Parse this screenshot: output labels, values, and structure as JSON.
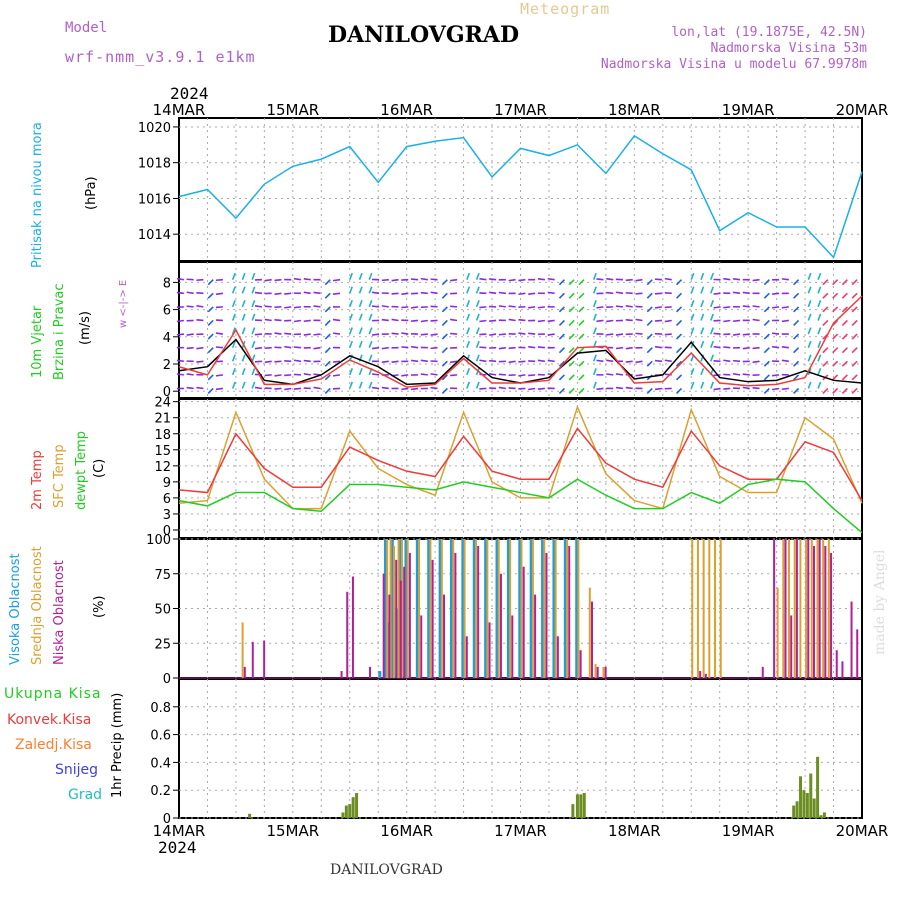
{
  "header": {
    "model_label": "Model",
    "model_name": "wrf-nmm_v3.9.1 e1km",
    "title": "DANILOVGRAD",
    "meteogram": "Meteogram",
    "lonlat": "lon,lat (19.1875E, 42.5N)",
    "elev": "Nadmorska Visina 53m",
    "elev_model": "Nadmorska Visina u modelu 67.9978m",
    "year_top": "2024",
    "year_bottom": "2024",
    "bottom_title": "DANILOVGRAD",
    "watermark": "made by Angel"
  },
  "date_labels": [
    "14MAR",
    "15MAR",
    "16MAR",
    "17MAR",
    "18MAR",
    "19MAR",
    "20MAR"
  ],
  "colors": {
    "pressure": "#1ab0e8",
    "temp2m": "#ee3b3b",
    "sfc": "#dca030",
    "dewpt": "#22cc22",
    "high_cloud": "#1a9ee0",
    "mid_cloud": "#dca030",
    "low_cloud": "#b0209a",
    "precip": "#6b8e23",
    "wind_purple": "#8a2be2",
    "wind_cyan": "#20b2c8",
    "wind_blue": "#2060e0"
  },
  "panel_labels": {
    "pressure": "Pritisak na nivou mora",
    "pressure_unit": "(hPa)",
    "wind1": "10m Vjetar",
    "wind2": "Brzina i Pravac",
    "wind_unit": "(m/s)",
    "compass": "w <-|-> E",
    "temp_2m": "2m Temp",
    "temp_sfc": "SFC Temp",
    "temp_dew": "dewpt Temp",
    "temp_unit": "(C)",
    "cloud_high": "Visoka Oblacnost",
    "cloud_mid": "Srednja Oblacnost",
    "cloud_low": "Niska Oblacnost",
    "cloud_unit": "(%)",
    "precip_unit": "1hr Precip (mm)",
    "legend": [
      "Ukupna Kisa",
      "Konvek.Kisa",
      "Zaledj.Kisa",
      "Snijeg",
      "Grad"
    ]
  },
  "chart_data": [
    {
      "type": "line",
      "ylabel": "(hPa)",
      "ylim": [
        1012.5,
        1020.5
      ],
      "yticks": [
        "1014",
        "1016",
        "1018",
        "1020"
      ],
      "x_days": [
        0,
        0.25,
        0.5,
        0.75,
        1,
        1.25,
        1.5,
        1.75,
        2,
        2.25,
        2.5,
        2.75,
        3,
        3.25,
        3.5,
        3.75,
        4,
        4.25,
        4.5,
        4.75,
        5,
        5.25,
        5.5,
        5.75,
        6
      ],
      "series": [
        {
          "values": [
            1016.1,
            1016.5,
            1014.9,
            1016.8,
            1017.8,
            1018.2,
            1018.9,
            1016.9,
            1018.9,
            1019.2,
            1019.4,
            1017.2,
            1018.8,
            1018.4,
            1019.0,
            1017.4,
            1019.5,
            1018.5,
            1017.6,
            1014.2,
            1015.2,
            1014.4,
            1014.4,
            1012.7,
            1017.5
          ]
        }
      ]
    },
    {
      "type": "line",
      "ylabel": "(m/s)",
      "ylim": [
        -0.5,
        9.5
      ],
      "yticks": [
        "0",
        "2",
        "4",
        "6",
        "8"
      ],
      "x_days": [
        0,
        0.25,
        0.5,
        0.75,
        1,
        1.25,
        1.5,
        1.75,
        2,
        2.25,
        2.5,
        2.75,
        3,
        3.25,
        3.5,
        3.75,
        4,
        4.25,
        4.5,
        4.75,
        5,
        5.25,
        5.5,
        5.75,
        6
      ],
      "series": [
        {
          "values": [
            1.5,
            1.8,
            3.8,
            0.8,
            0.5,
            1.2,
            2.6,
            1.8,
            0.5,
            0.6,
            2.6,
            1.0,
            0.6,
            1.0,
            2.8,
            3.0,
            0.9,
            1.2,
            3.6,
            1.0,
            0.7,
            0.8,
            1.5,
            0.8,
            0.6
          ]
        },
        {
          "values": [
            1.8,
            1.2,
            4.5,
            0.5,
            0.5,
            0.9,
            2.3,
            1.4,
            0.3,
            0.5,
            2.4,
            0.6,
            0.6,
            0.8,
            3.2,
            3.3,
            0.6,
            0.7,
            2.8,
            0.6,
            0.4,
            0.5,
            1.0,
            5.0,
            7.0
          ]
        }
      ]
    },
    {
      "type": "line",
      "ylabel": "(C)",
      "ylim": [
        -1.5,
        24.5
      ],
      "yticks": [
        "0",
        "3",
        "6",
        "9",
        "12",
        "15",
        "18",
        "21",
        "24"
      ],
      "x_days": [
        0,
        0.25,
        0.5,
        0.75,
        1,
        1.25,
        1.5,
        1.75,
        2,
        2.25,
        2.5,
        2.75,
        3,
        3.25,
        3.5,
        3.75,
        4,
        4.25,
        4.5,
        4.75,
        5,
        5.25,
        5.5,
        5.75,
        6
      ],
      "series": [
        {
          "values": [
            7.5,
            7.0,
            18.0,
            11.5,
            8.0,
            8.0,
            15.5,
            13.0,
            11.0,
            10.0,
            17.5,
            11.0,
            9.5,
            9.5,
            19.0,
            12.5,
            9.5,
            8.0,
            18.5,
            12.0,
            9.5,
            9.5,
            16.5,
            14.5,
            5.5
          ]
        },
        {
          "values": [
            5.0,
            5.5,
            22.0,
            9.5,
            4.0,
            4.0,
            18.5,
            11.5,
            8.5,
            6.5,
            22.0,
            9.0,
            6.0,
            6.0,
            23.0,
            10.5,
            5.5,
            4.0,
            22.5,
            10.0,
            7.0,
            7.0,
            21.0,
            17.0,
            5.0
          ]
        },
        {
          "values": [
            5.5,
            4.5,
            7.0,
            7.0,
            4.0,
            3.5,
            8.5,
            8.5,
            8.0,
            7.5,
            9.0,
            8.0,
            7.0,
            6.0,
            9.5,
            6.5,
            4.0,
            4.0,
            7.0,
            5.0,
            8.5,
            9.5,
            9.0,
            4.0,
            -0.5
          ]
        }
      ]
    },
    {
      "type": "bar",
      "ylabel": "(%)",
      "ylim": [
        0,
        100
      ],
      "yticks": [
        "0",
        "25",
        "50",
        "75",
        "100"
      ],
      "x_days": [
        0.55,
        0.62,
        0.72,
        0.75,
        1.4,
        1.45,
        1.5,
        1.65,
        1.77,
        1.82,
        1.85,
        1.88,
        1.92,
        1.95,
        2.0,
        2.1,
        2.2,
        2.3,
        2.4,
        2.5,
        2.6,
        2.7,
        2.8,
        2.9,
        3.0,
        3.1,
        3.2,
        3.3,
        3.4,
        3.5,
        3.6,
        3.65,
        3.72,
        4.5,
        4.55,
        4.6,
        4.65,
        4.7,
        4.75,
        5.1,
        5.2,
        5.25,
        5.3,
        5.35,
        5.4,
        5.45,
        5.5,
        5.55,
        5.6,
        5.65,
        5.7,
        5.75,
        5.8,
        5.88,
        5.93
      ],
      "series": [
        {
          "name": "Visoka Oblacnost",
          "values": [
            0,
            0,
            0,
            0,
            0,
            0,
            0,
            0,
            5,
            100,
            40,
            100,
            50,
            100,
            100,
            100,
            100,
            100,
            100,
            100,
            100,
            100,
            100,
            100,
            100,
            100,
            100,
            100,
            100,
            100,
            0,
            0,
            0,
            0,
            0,
            0,
            0,
            0,
            0,
            0,
            0,
            0,
            0,
            0,
            0,
            0,
            0,
            0,
            0,
            0,
            0,
            0,
            0,
            0,
            0
          ]
        },
        {
          "name": "Srednja Oblacnost",
          "values": [
            40,
            0,
            0,
            0,
            0,
            0,
            0,
            0,
            0,
            100,
            100,
            95,
            100,
            100,
            100,
            100,
            100,
            100,
            100,
            100,
            100,
            100,
            100,
            100,
            100,
            100,
            100,
            100,
            100,
            100,
            65,
            10,
            8,
            100,
            100,
            100,
            100,
            100,
            100,
            0,
            0,
            65,
            100,
            100,
            100,
            100,
            100,
            100,
            100,
            100,
            100,
            0,
            0,
            0,
            0
          ]
        },
        {
          "name": "Niska Oblacnost",
          "values": [
            8,
            26,
            27,
            0,
            5,
            62,
            73,
            8,
            75,
            60,
            0,
            85,
            70,
            80,
            90,
            45,
            85,
            60,
            90,
            30,
            95,
            40,
            75,
            45,
            80,
            60,
            90,
            30,
            95,
            20,
            55,
            8,
            8,
            0,
            5,
            3,
            0,
            0,
            0,
            8,
            100,
            0,
            100,
            45,
            100,
            0,
            100,
            95,
            100,
            95,
            90,
            20,
            12,
            55,
            35
          ]
        }
      ]
    },
    {
      "type": "bar",
      "ylabel": "1hr Precip (mm)",
      "ylim": [
        0,
        1.0
      ],
      "yticks": [
        "0",
        "0.2",
        "0.4",
        "0.6",
        "0.8"
      ],
      "x_days": [
        0.62,
        1.44,
        1.47,
        1.5,
        1.53,
        1.56,
        3.46,
        3.5,
        3.53,
        3.56,
        5.4,
        5.43,
        5.46,
        5.49,
        5.52,
        5.55,
        5.58,
        5.61,
        5.64,
        5.67
      ],
      "series": [
        {
          "name": "Ukupna Kisa",
          "values": [
            0.03,
            0.04,
            0.09,
            0.1,
            0.15,
            0.18,
            0.1,
            0.17,
            0.17,
            0.18,
            0.09,
            0.12,
            0.3,
            0.2,
            0.18,
            0.32,
            0.14,
            0.44,
            0.02,
            0.04
          ]
        }
      ]
    }
  ]
}
